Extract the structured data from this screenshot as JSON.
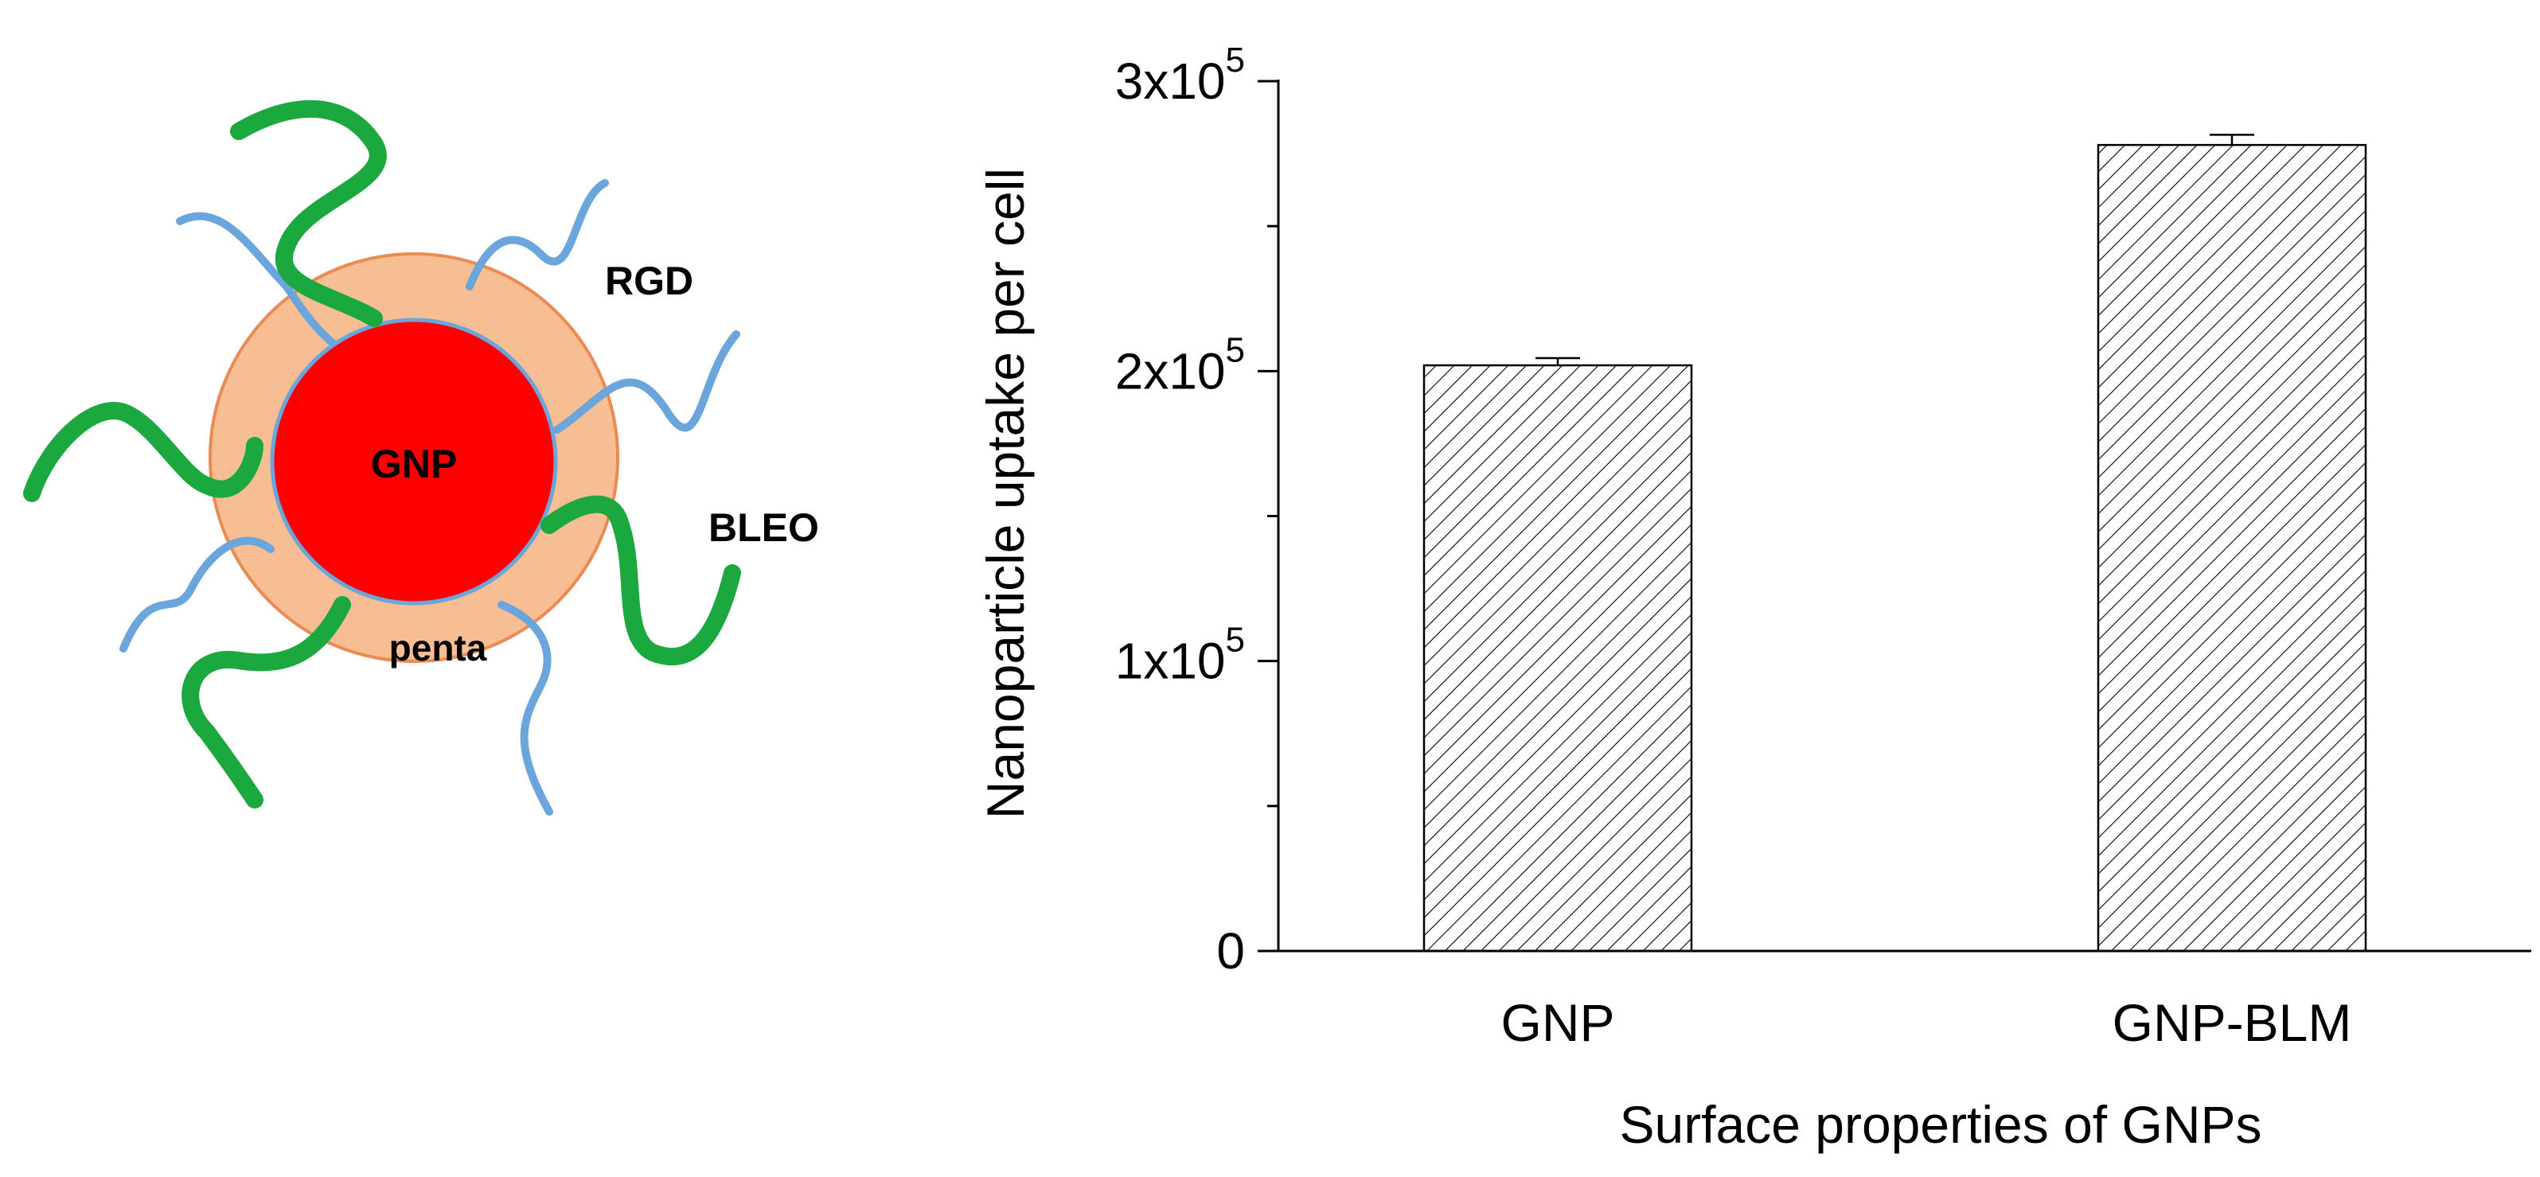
{
  "schematic": {
    "labels": {
      "core": "GNP",
      "shell": "penta",
      "rgd": "RGD",
      "bleo": "BLEO"
    },
    "colors": {
      "core": "#ff0000",
      "shell": "#f6be92",
      "shell_outline": "#e98b52",
      "rgd": "#6aa6dc",
      "bleo": "#1ba83e"
    }
  },
  "chart_data": {
    "type": "bar",
    "categories": [
      "GNP",
      "GNP-BLM"
    ],
    "values": [
      202000,
      278000
    ],
    "errors": [
      2500,
      3500
    ],
    "xlabel": "Surface properties of GNPs",
    "ylabel": "Nanoparticle uptake per cell",
    "ylim": [
      0,
      300000
    ],
    "yticks": [
      {
        "value": 0,
        "mantissa": "0",
        "exponent": ""
      },
      {
        "value": 100000,
        "mantissa": "1x10",
        "exponent": "5"
      },
      {
        "value": 200000,
        "mantissa": "2x10",
        "exponent": "5"
      },
      {
        "value": 300000,
        "mantissa": "3x10",
        "exponent": "5"
      }
    ],
    "minor_ticks": [
      50000,
      150000,
      250000
    ],
    "bar_fill": "diagonal-hatch",
    "grid": false,
    "legend": "none"
  }
}
